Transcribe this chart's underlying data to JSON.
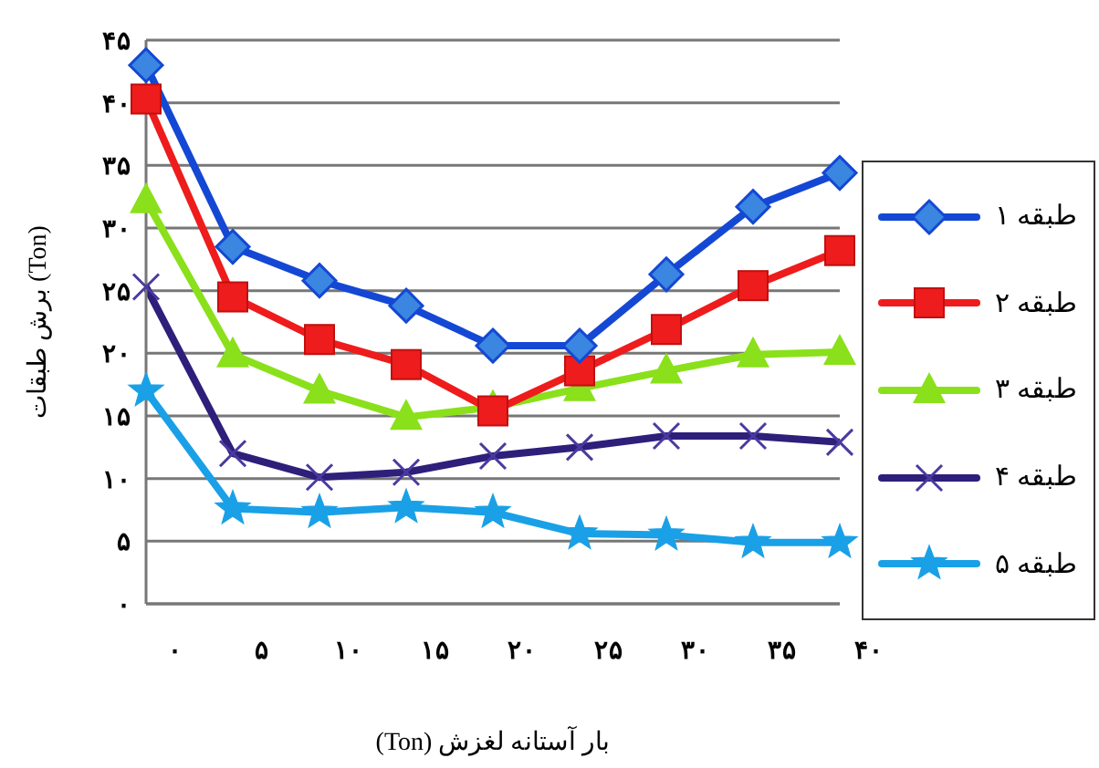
{
  "chart_data": {
    "type": "line",
    "xlabel": "بار آستانه لغزش (Ton)",
    "ylabel": "برش طبقات (Ton)",
    "categories": [
      "۰",
      "۵",
      "۱۰",
      "۱۵",
      "۲۰",
      "۲۵",
      "۳۰",
      "۳۵",
      "۴۰"
    ],
    "series": [
      {
        "name": "طبقه ۱",
        "color": "#1448d4",
        "marker": "diamond",
        "values": [
          43,
          28.5,
          25.8,
          23.8,
          20.6,
          20.6,
          26.3,
          31.7,
          34.4
        ]
      },
      {
        "name": "طبقه ۲",
        "color": "#ee1c1c",
        "marker": "square",
        "values": [
          40.3,
          24.5,
          21.1,
          19.1,
          15.4,
          18.6,
          21.9,
          25.4,
          28.2
        ]
      },
      {
        "name": "طبقه ۳",
        "color": "#8ae01a",
        "marker": "triangle",
        "values": [
          32.2,
          19.9,
          17.0,
          14.9,
          15.7,
          17.2,
          18.6,
          19.9,
          20.1
        ]
      },
      {
        "name": "طبقه ۴",
        "color": "#2e1f7a",
        "marker": "cross",
        "values": [
          25.3,
          12.0,
          10.1,
          10.5,
          11.8,
          12.5,
          13.4,
          13.4,
          12.9
        ]
      },
      {
        "name": "طبقه ۵",
        "color": "#1aa0e6",
        "marker": "star",
        "values": [
          17.0,
          7.6,
          7.3,
          7.7,
          7.3,
          5.6,
          5.5,
          4.9,
          4.9
        ]
      }
    ],
    "ylim": [
      0,
      45
    ],
    "yticks": [
      {
        "value": 0,
        "label": "۰"
      },
      {
        "value": 5,
        "label": "۵"
      },
      {
        "value": 10,
        "label": "۱۰"
      },
      {
        "value": 15,
        "label": "۱۵"
      },
      {
        "value": 20,
        "label": "۲۰"
      },
      {
        "value": 25,
        "label": "۲۵"
      },
      {
        "value": 30,
        "label": "۳۰"
      },
      {
        "value": 35,
        "label": "۳۵"
      },
      {
        "value": 40,
        "label": "۴۰"
      },
      {
        "value": 45,
        "label": "۴۵"
      }
    ],
    "grid": "y",
    "legend": "right",
    "line_style": "solid"
  }
}
